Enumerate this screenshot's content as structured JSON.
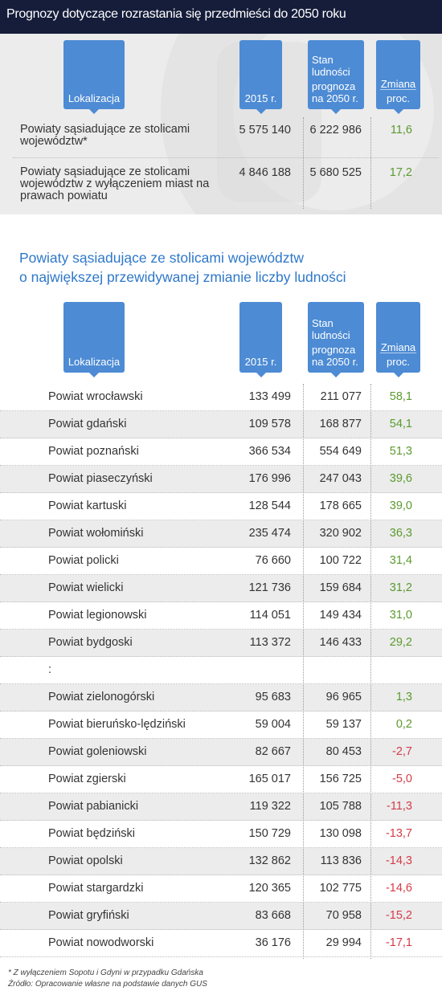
{
  "title": "Prognozy dotyczące rozrastania się przedmieści do 2050 roku",
  "headers": {
    "location": "Lokalizacja",
    "year2015": "2015 r.",
    "forecast_line1": "Stan",
    "forecast_line2": "ludności",
    "forecast_line3": "prognoza",
    "forecast_line4": "na 2050 r.",
    "change_line1": "Zmiana",
    "change_line2": "proc."
  },
  "summary": [
    {
      "name": "Powiaty sąsiadujące ze stolicami województw*",
      "y2015": "5 575 140",
      "y2050": "6 222 986",
      "change": "11,6"
    },
    {
      "name": "Powiaty sąsiadujące ze stolicami województw z wyłączeniem miast na prawach powiatu",
      "y2015": "4 846 188",
      "y2050": "5 680 525",
      "change": "17,2"
    }
  ],
  "subtitle_line1": "Powiaty sąsiadujące ze stolicami województw",
  "subtitle_line2": "o największej przewidywanej zmianie liczby ludności",
  "rows": [
    {
      "name": "Powiat wrocławski",
      "y2015": "133 499",
      "y2050": "211 077",
      "change": "58,1",
      "sign": "pos"
    },
    {
      "name": "Powiat gdański",
      "y2015": "109 578",
      "y2050": "168 877",
      "change": "54,1",
      "sign": "pos"
    },
    {
      "name": "Powiat poznański",
      "y2015": "366 534",
      "y2050": "554 649",
      "change": "51,3",
      "sign": "pos"
    },
    {
      "name": "Powiat piaseczyński",
      "y2015": "176 996",
      "y2050": "247 043",
      "change": "39,6",
      "sign": "pos"
    },
    {
      "name": "Powiat kartuski",
      "y2015": "128 544",
      "y2050": "178 665",
      "change": "39,0",
      "sign": "pos"
    },
    {
      "name": "Powiat wołomiński",
      "y2015": "235 474",
      "y2050": "320 902",
      "change": "36,3",
      "sign": "pos"
    },
    {
      "name": "Powiat policki",
      "y2015": "76 660",
      "y2050": "100  722",
      "change": "31,4",
      "sign": "pos"
    },
    {
      "name": "Powiat wielicki",
      "y2015": "121 736",
      "y2050": "159 684",
      "change": "31,2",
      "sign": "pos"
    },
    {
      "name": "Powiat legionowski",
      "y2015": "114 051",
      "y2050": "149 434",
      "change": "31,0",
      "sign": "pos"
    },
    {
      "name": "Powiat bydgoski",
      "y2015": "113 372",
      "y2050": "146 433",
      "change": "29,2",
      "sign": "pos"
    },
    {
      "name": ":",
      "y2015": "",
      "y2050": "",
      "change": "",
      "sign": "none"
    },
    {
      "name": "Powiat zielonogórski",
      "y2015": "95 683",
      "y2050": "96 965",
      "change": "1,3",
      "sign": "pos"
    },
    {
      "name": "Powiat bieruńsko-lędziński",
      "y2015": "59 004",
      "y2050": "59 137",
      "change": "0,2",
      "sign": "pos"
    },
    {
      "name": "Powiat goleniowski",
      "y2015": "82 667",
      "y2050": "80 453",
      "change": "-2,7",
      "sign": "neg"
    },
    {
      "name": "Powiat zgierski",
      "y2015": "165  017",
      "y2050": "156 725",
      "change": "-5,0",
      "sign": "neg"
    },
    {
      "name": "Powiat pabianicki",
      "y2015": "119 322",
      "y2050": "105 788",
      "change": "-11,3",
      "sign": "neg"
    },
    {
      "name": "Powiat będziński",
      "y2015": "150 729",
      "y2050": "130 098",
      "change": "-13,7",
      "sign": "neg"
    },
    {
      "name": "Powiat opolski",
      "y2015": "132 862",
      "y2050": "113 836",
      "change": "-14,3",
      "sign": "neg"
    },
    {
      "name": "Powiat stargardzki",
      "y2015": "120 365",
      "y2050": "102 775",
      "change": "-14,6",
      "sign": "neg"
    },
    {
      "name": "Powiat gryfiński",
      "y2015": "83 668",
      "y2050": "70 958",
      "change": "-15,2",
      "sign": "neg"
    },
    {
      "name": "Powiat nowodworski",
      "y2015": "36 176",
      "y2050": "29 994",
      "change": "-17,1",
      "sign": "neg"
    }
  ],
  "footnote1": "* Z wyłączeniem Sopotu i Gdyni w przypadku Gdańska",
  "footnote2": "Źródło: Opracowanie własne na podstawie danych GUS",
  "colors": {
    "header_bg": "#151d3a",
    "accent_blue": "#4d8bd4",
    "subtitle_blue": "#2e78c9",
    "positive": "#5b9a2e",
    "negative": "#d43c48",
    "shade": "#ececec"
  }
}
